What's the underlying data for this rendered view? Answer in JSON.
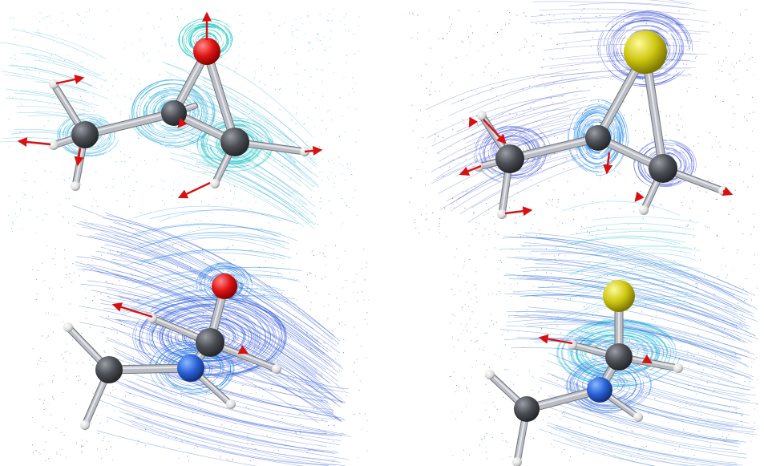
{
  "panels": [
    {
      "id": "top-left",
      "hetero_element": "O",
      "hetero_color": "#e01414",
      "flow_color": "#1fa8d8",
      "flow_color_dense": "#16c6c0",
      "view": "perspective"
    },
    {
      "id": "top-right",
      "hetero_element": "S",
      "hetero_color": "#c9c20c",
      "flow_color": "#2a3fd0",
      "flow_color_dense": "#1a86e8",
      "view": "perspective"
    },
    {
      "id": "bottom-left",
      "hetero_element": "O",
      "hetero_color": "#e01414",
      "flow_color": "#2a52d8",
      "flow_color_dense": "#1a80e0",
      "view": "top-down"
    },
    {
      "id": "bottom-right",
      "hetero_element": "S",
      "hetero_color": "#d9d40e",
      "flow_color": "#2a68d8",
      "flow_color_dense": "#16b8d8",
      "view": "top-down"
    }
  ],
  "colors": {
    "carbon": "#4a4d52",
    "hydrogen": "#e6e6e6",
    "bond": "#b9bcc2",
    "arrow": "#d81010"
  }
}
